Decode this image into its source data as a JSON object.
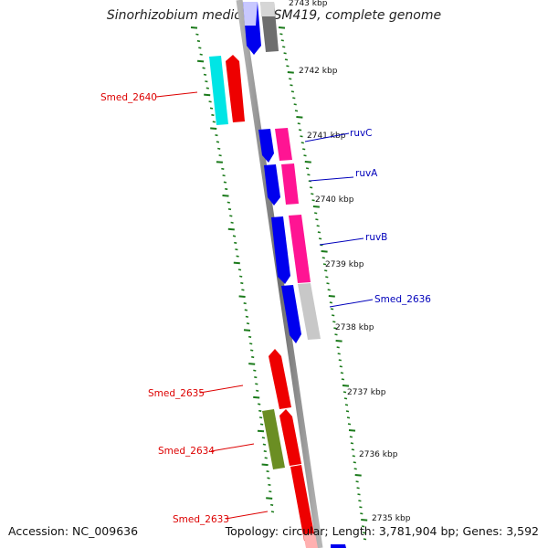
{
  "title": "Sinorhizobium medicae WSM419, complete genome",
  "footer": {
    "accession": "Accession: NC_009636",
    "summary": "Topology: circular; Length: 3,781,904 bp; Genes: 3,592"
  },
  "scale_labels": [
    "2743 kbp",
    "2742 kbp",
    "2741 kbp",
    "2740 kbp",
    "2739 kbp",
    "2738 kbp",
    "2737 kbp",
    "2736 kbp",
    "2735 kbp"
  ],
  "genes": [
    {
      "label": "Smed_2640",
      "color": "#dd0000",
      "side": "left"
    },
    {
      "label": "ruvC",
      "color": "#0000bb",
      "side": "right"
    },
    {
      "label": "ruvA",
      "color": "#0000bb",
      "side": "right"
    },
    {
      "label": "ruvB",
      "color": "#0000bb",
      "side": "right"
    },
    {
      "label": "Smed_2636",
      "color": "#0000bb",
      "side": "right"
    },
    {
      "label": "Smed_2635",
      "color": "#dd0000",
      "side": "left"
    },
    {
      "label": "Smed_2634",
      "color": "#dd0000",
      "side": "left"
    },
    {
      "label": "Smed_2633",
      "color": "#dd0000",
      "side": "left"
    }
  ],
  "colors": {
    "forward_strand": "#0000ff",
    "reverse_strand": "#ff0000",
    "cyan_feature": "#00e5e5",
    "olive_feature": "#6b8e23",
    "magenta_feature": "#ff1493",
    "gray_feature": "#c8c8c8",
    "dark_gray_feature": "#6e6e6e",
    "tick": "#1a7a1a",
    "backbone": "#8a8a8a"
  }
}
